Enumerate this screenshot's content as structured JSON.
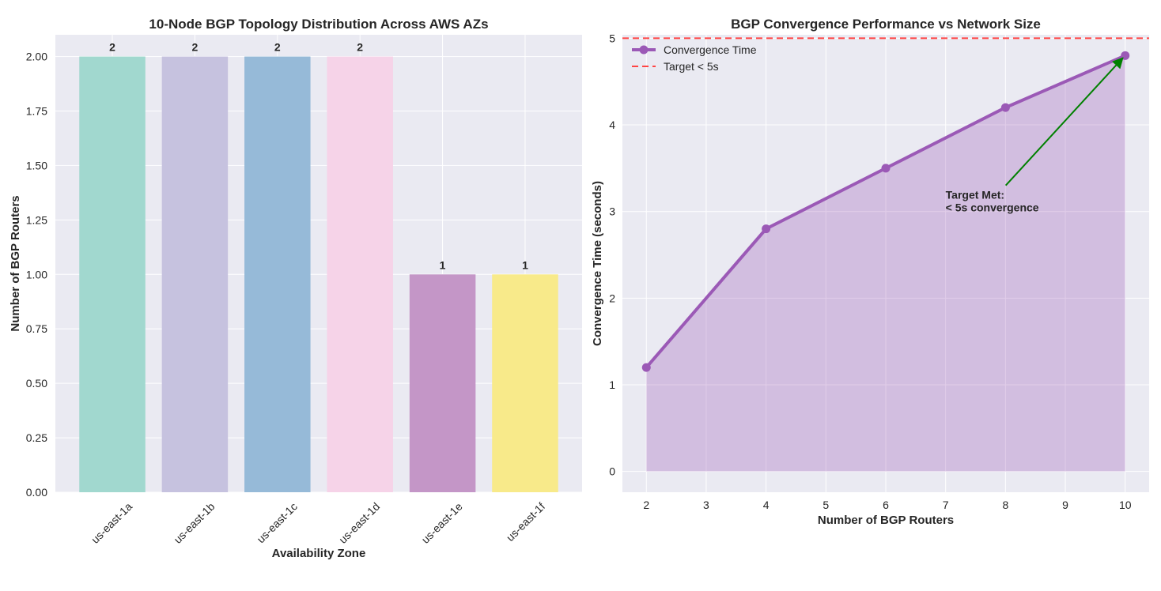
{
  "chart_data": [
    {
      "type": "bar",
      "title": "10-Node BGP Topology Distribution Across AWS AZs",
      "xlabel": "Availability Zone",
      "ylabel": "Number of BGP Routers",
      "categories": [
        "us-east-1a",
        "us-east-1b",
        "us-east-1c",
        "us-east-1d",
        "us-east-1e",
        "us-east-1f"
      ],
      "values": [
        2,
        2,
        2,
        2,
        1,
        1
      ],
      "colors": [
        "#a1d8cf",
        "#c6c2df",
        "#96bad8",
        "#f6d3e8",
        "#c496c7",
        "#f8ea8a"
      ],
      "ylim": [
        0,
        2.1
      ],
      "yticks": [
        {
          "value": 0,
          "label": "0.00"
        },
        {
          "value": 0.25,
          "label": "0.25"
        },
        {
          "value": 0.5,
          "label": "0.50"
        },
        {
          "value": 0.75,
          "label": "0.75"
        },
        {
          "value": 1,
          "label": "1.00"
        },
        {
          "value": 1.25,
          "label": "1.25"
        },
        {
          "value": 1.5,
          "label": "1.50"
        },
        {
          "value": 1.75,
          "label": "1.75"
        },
        {
          "value": 2,
          "label": "2.00"
        }
      ],
      "grid": true
    },
    {
      "type": "line",
      "title": "BGP Convergence Performance vs Network Size",
      "xlabel": "Number of BGP Routers",
      "ylabel": "Convergence Time (seconds)",
      "x": [
        2,
        4,
        6,
        8,
        10
      ],
      "series": [
        {
          "name": "Convergence Time",
          "color": "#9b59b6",
          "values": [
            1.2,
            2.8,
            3.5,
            4.2,
            4.8
          ]
        }
      ],
      "reference_line": {
        "name": "Target < 5s",
        "value": 5,
        "color": "#ff4444"
      },
      "annotation": {
        "lines": [
          "Target Met:",
          "< 5s convergence"
        ],
        "color": "#008000",
        "xy": [
          10,
          4.8
        ],
        "xytext": [
          7,
          3
        ]
      },
      "xlim": [
        1.6,
        10.4
      ],
      "ylim": [
        -0.24,
        5.04
      ],
      "xticks": [
        2,
        3,
        4,
        5,
        6,
        7,
        8,
        9,
        10
      ],
      "yticks": [
        0,
        1,
        2,
        3,
        4,
        5
      ],
      "grid": true,
      "legend": "upper left"
    }
  ]
}
